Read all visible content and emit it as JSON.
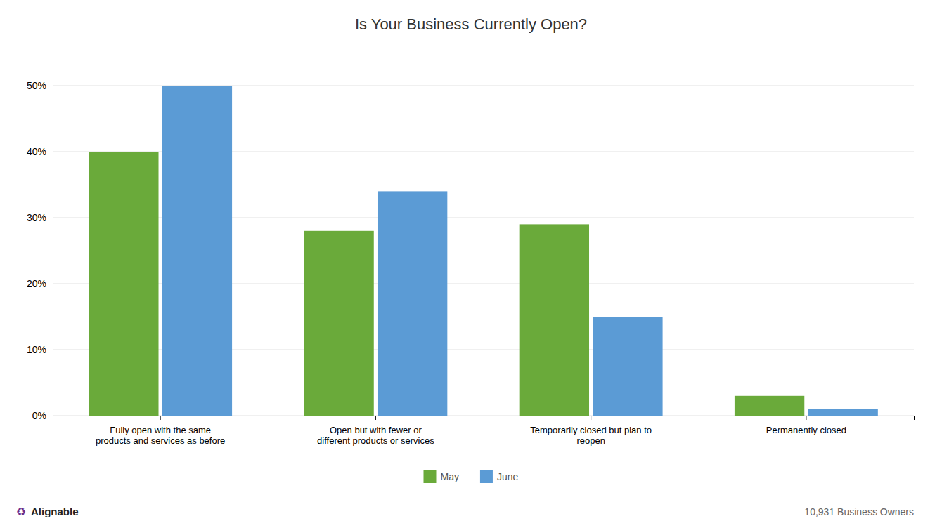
{
  "chart_data": {
    "type": "bar",
    "title": "Is Your Business Currently Open?",
    "categories": [
      "Fully open with the same\nproducts and services as before",
      "Open but with fewer or\ndifferent products or services",
      "Temporarily closed but plan to\nreopen",
      "Permanently closed"
    ],
    "series": [
      {
        "name": "May",
        "color": "#6aaa3a",
        "values": [
          40,
          28,
          29,
          3
        ]
      },
      {
        "name": "June",
        "color": "#5b9bd5",
        "values": [
          50,
          34,
          15,
          1
        ]
      }
    ],
    "ylim": [
      0,
      55
    ],
    "yticks": [
      {
        "value": 0,
        "label": "0%"
      },
      {
        "value": 10,
        "label": "10%"
      },
      {
        "value": 20,
        "label": "20%"
      },
      {
        "value": 30,
        "label": "30%"
      },
      {
        "value": 40,
        "label": "40%"
      },
      {
        "value": 50,
        "label": "50%"
      }
    ],
    "grid": true,
    "legend": "bottom",
    "annotations": [
      "♻",
      "Alignable",
      "10,931 Business Owners"
    ]
  }
}
